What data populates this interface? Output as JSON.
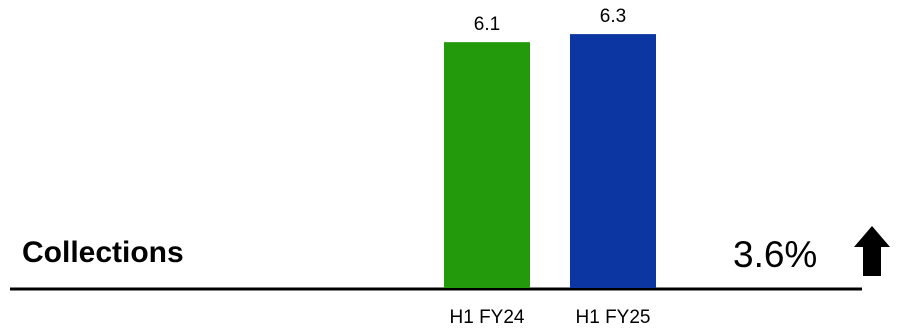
{
  "chart_data": {
    "type": "bar",
    "categories": [
      "H1 FY24",
      "H1 FY25"
    ],
    "values": [
      6.1,
      6.3
    ],
    "data_labels": [
      "6.1",
      "6.3"
    ],
    "colors": [
      "#239a0c",
      "#0c37a3"
    ],
    "title": "",
    "xlabel": "",
    "ylabel": "",
    "ylim": [
      0,
      6.6
    ],
    "grid": false,
    "legend": "none"
  },
  "metric": {
    "label": "Collections",
    "change": "3.6%",
    "direction_icon": "up-arrow-icon"
  }
}
